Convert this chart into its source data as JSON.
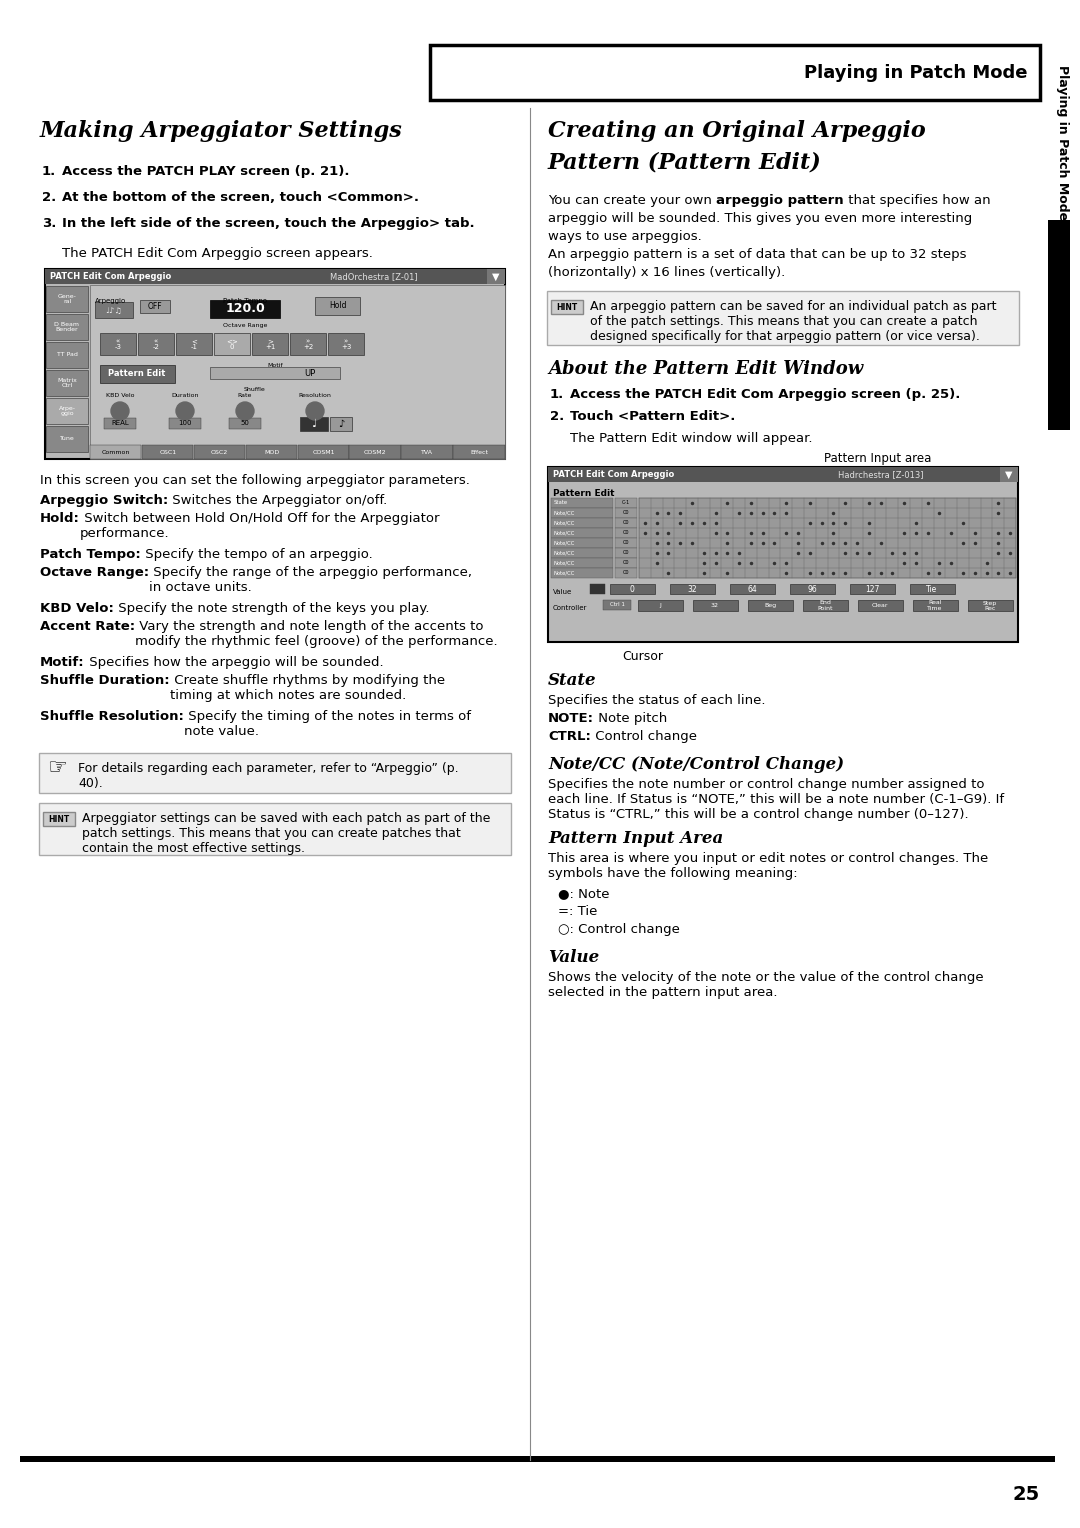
{
  "page_bg": "#ffffff",
  "header_text": "Playing in Patch Mode",
  "page_number": "25",
  "sidebar_text": "Playing in Patch Mode",
  "left_col_title": "Making Arpeggiator Settings",
  "left_steps": [
    [
      "1.",
      "Access the PATCH PLAY screen (p. 21)."
    ],
    [
      "2.",
      "At the bottom of the screen, touch <Common>."
    ],
    [
      "3.",
      "In the left side of the screen, touch the Arpeggio> tab."
    ]
  ],
  "left_step3_sub": "The PATCH Edit Com Arpeggio screen appears.",
  "left_body_intro": "In this screen you can set the following arpeggiator parameters.",
  "left_body_items": [
    [
      "Arpeggio Switch:",
      " Switches the Arpeggiator on/off."
    ],
    [
      "Hold:",
      " Switch between Hold On/Hold Off for the Arpeggiator\nperformance."
    ],
    [
      "Patch Tempo:",
      " Specify the tempo of an arpeggio."
    ],
    [
      "Octave Range:",
      " Specify the range of the arpeggio performance,\nin octave units."
    ],
    [
      "KBD Velo:",
      " Specify the note strength of the keys you play."
    ],
    [
      "Accent Rate:",
      " Vary the strength and note length of the accents to\nmodify the rhythmic feel (groove) of the performance."
    ],
    [
      "Motif:",
      " Specifies how the arpeggio will be sounded."
    ],
    [
      "Shuffle Duration:",
      " Create shuffle rhythms by modifying the\ntiming at which notes are sounded."
    ],
    [
      "Shuffle Resolution:",
      " Specify the timing of the notes in terms of\nnote value."
    ]
  ],
  "note_icon_text": "For details regarding each parameter, refer to “Arpeggio” (p.\n40).",
  "hint_text_left": "Arpeggiator settings can be saved with each patch as part of the\npatch settings. This means that you can create patches that\ncontain the most effective settings.",
  "right_col_title_line1": "Creating an Original Arpeggio",
  "right_col_title_line2": "Pattern (Pattern Edit)",
  "right_intro_lines": [
    [
      "You can create your own ",
      "arpeggio pattern",
      " that specifies how an"
    ],
    [
      "arpeggio will be sounded. This gives you even more interesting"
    ],
    [
      "ways to use arpeggios."
    ],
    [
      "An arpeggio pattern is a set of data that can be up to 32 steps"
    ],
    [
      "(horizontally) x 16 lines (vertically)."
    ]
  ],
  "hint_text_right": "An arpeggio pattern can be saved for an individual patch as part\nof the patch settings. This means that you can create a patch\ndesigned specifically for that arpeggio pattern (or vice versa).",
  "about_title": "About the Pattern Edit Window",
  "about_steps": [
    [
      "1.",
      "Access the PATCH Edit Com Arpeggio screen (p. 25)."
    ],
    [
      "2.",
      "Touch <Pattern Edit>."
    ]
  ],
  "about_step2_sub": "The Pattern Edit window will appear.",
  "pattern_input_label": "Pattern Input area",
  "cursor_label": "Cursor",
  "state_title": "State",
  "state_body": "Specifies the status of each line.",
  "state_items": [
    [
      "NOTE:",
      " Note pitch"
    ],
    [
      "CTRL:",
      " Control change"
    ]
  ],
  "note_cc_title": "Note/CC (Note/Control Change)",
  "note_cc_body": "Specifies the note number or control change number assigned to\neach line. If Status is “NOTE,” this will be a note number (C-1–G9). If\nStatus is “CTRL,” this will be a control change number (0–127).",
  "pattern_input_title": "Pattern Input Area",
  "pattern_input_body": "This area is where you input or edit notes or control changes. The\nsymbols have the following meaning:",
  "pattern_symbols": [
    "●: Note",
    "=: Tie",
    "○: Control change"
  ],
  "value_title": "Value",
  "value_body": "Shows the velocity of the note or the value of the control change\nselected in the pattern input area."
}
